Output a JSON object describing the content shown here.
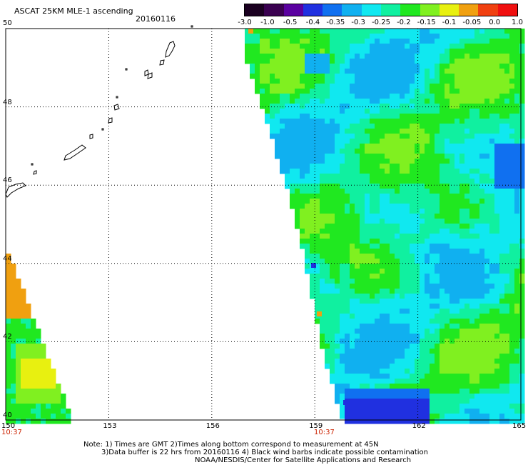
{
  "header": {
    "title": "ASCAT 25KM MLE-1 ascending",
    "date": "20160116"
  },
  "colorbar": {
    "labels": [
      "-3.0",
      "-1.0",
      "-0.5",
      "-0.4",
      "-0.35",
      "-0.3",
      "-0.25",
      "-0.2",
      "-0.15",
      "-0.1",
      "-0.05",
      "0.0",
      "1.0"
    ],
    "colors": [
      "#1a0020",
      "#3a0050",
      "#5a00a0",
      "#2030e0",
      "#1070f0",
      "#10b0f0",
      "#10e8f0",
      "#10f0a0",
      "#20e820",
      "#80f020",
      "#e8f010",
      "#f0a010",
      "#f04010",
      "#f01010"
    ]
  },
  "axes": {
    "x_labels": [
      "150",
      "153",
      "156",
      "159",
      "162",
      "165"
    ],
    "y_labels": [
      "50",
      "48",
      "46",
      "44",
      "42",
      "40"
    ],
    "times": [
      "10:37",
      "10:37"
    ]
  },
  "notes": {
    "line1": "Note: 1) Times are GMT 2)Times along bottom correspond to measurement at 45N",
    "line2": "3)Data buffer is 22 hrs from 20160116 4) Black wind barbs indicate possible contamination",
    "line3": "NOAA/NESDIS/Center for Satellite Applications and Research"
  },
  "map_colors": {
    "cyan": "#10e8f0",
    "aqua": "#10f0a0",
    "green": "#20e820",
    "lime": "#80f020",
    "lightblue": "#10b0f0",
    "blue": "#1070f0",
    "deepblue": "#2030e0",
    "yellow": "#e8f010",
    "orange": "#f0a010",
    "red": "#f04010"
  }
}
